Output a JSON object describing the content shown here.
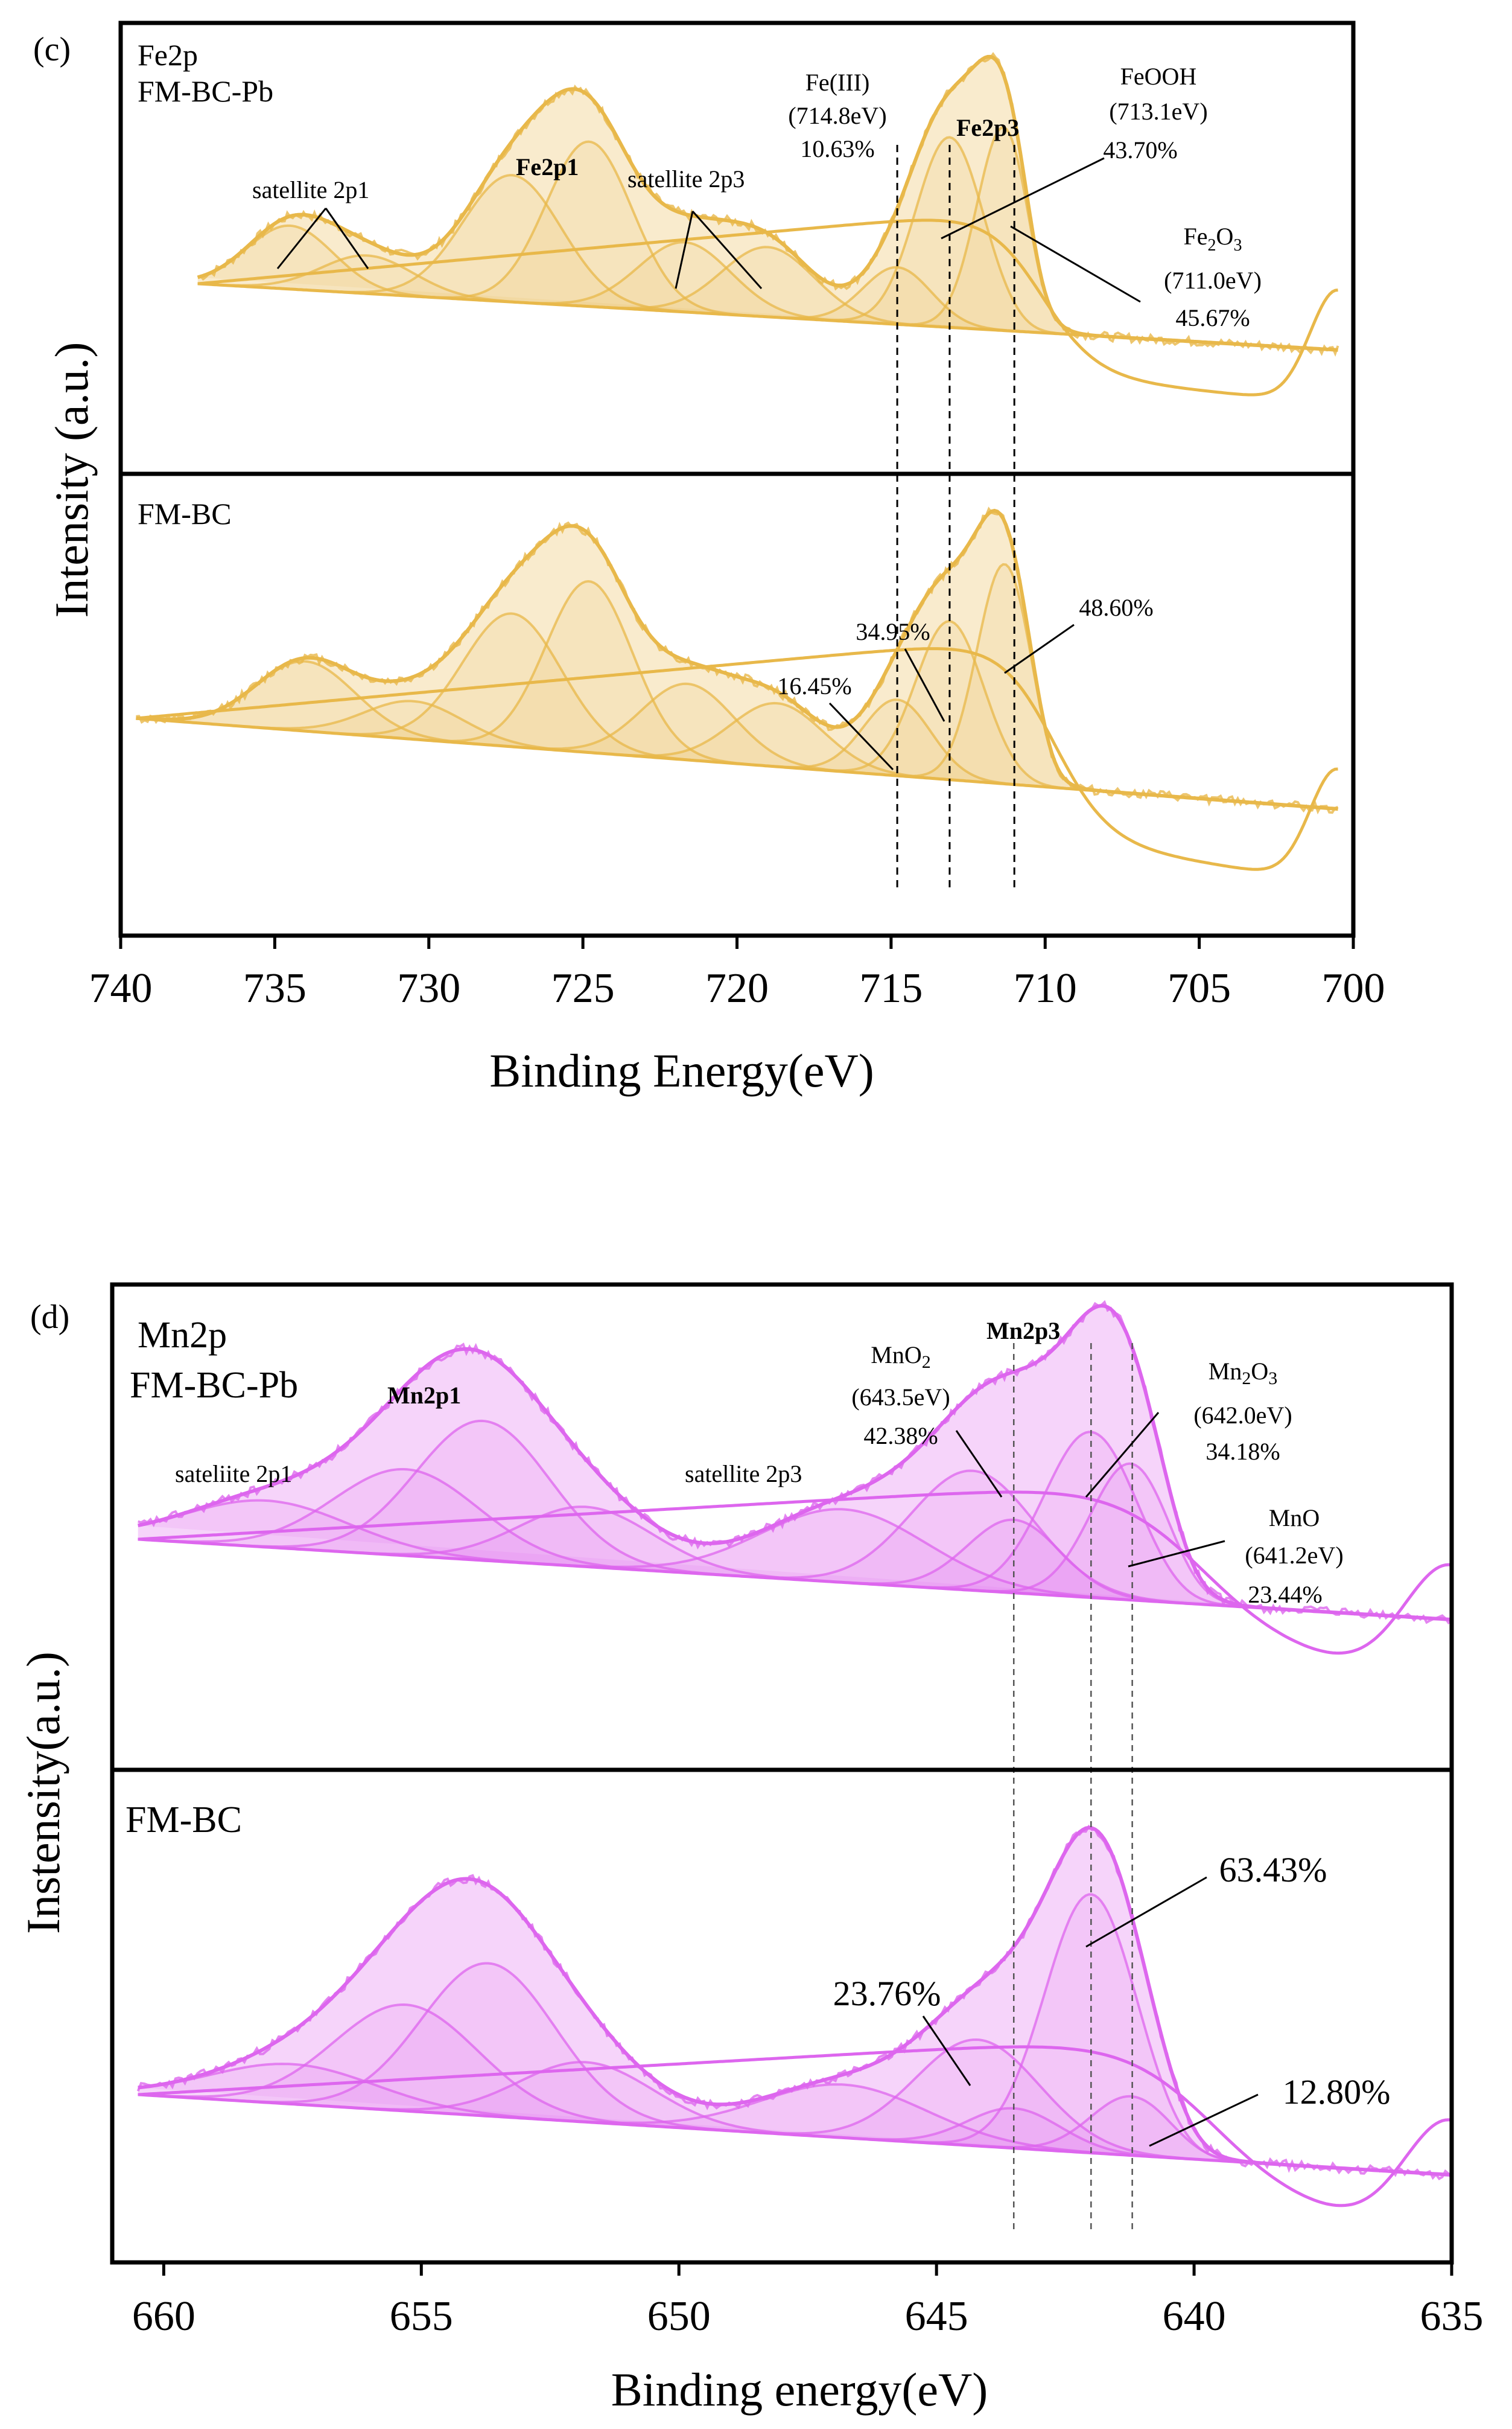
{
  "chart_data": [
    {
      "type": "line",
      "panel_label": "(c)",
      "element": "Fe2p",
      "xlabel": "Binding Energy(eV)",
      "ylabel": "Intensity (a.u.)",
      "xlim": [
        740,
        700
      ],
      "xticks": [
        740,
        735,
        730,
        725,
        720,
        715,
        710,
        705,
        700
      ],
      "color": "#E8B84A",
      "reference_lines": [
        714.8,
        713.1,
        711.0
      ],
      "subpanels": [
        {
          "sample": "FM-BC-Pb",
          "element_label": "Fe2p",
          "peak_labels": [
            {
              "id": "sat1",
              "text": "satellite 2p1",
              "x": [
                735,
                732
              ]
            },
            {
              "id": "fe2p1",
              "text": "Fe2p1",
              "x": 726
            },
            {
              "id": "sat3",
              "text": "satellite 2p3",
              "x": [
                721.5,
                719
              ]
            },
            {
              "id": "fe2p3",
              "text": "Fe2p3",
              "x": 712.3
            }
          ],
          "components": [
            {
              "name": "Fe(III)",
              "energy_label": "(714.8eV)",
              "percent_label": "10.63%",
              "energy": 714.8,
              "percent": 10.63
            },
            {
              "name": "FeOOH",
              "energy_label": "(713.1eV)",
              "percent_label": "43.70%",
              "energy": 713.1,
              "percent": 43.7
            },
            {
              "name": "Fe2O3",
              "name_base": "Fe",
              "sub1": "2",
              "name_mid": "O",
              "sub2": "3",
              "energy_label": "(711.0eV)",
              "percent_label": "45.67%",
              "energy": 711.0,
              "percent": 45.67
            }
          ],
          "peaks": [
            [
              734.5,
              1.4,
              0.5
            ],
            [
              732,
              1.5,
              0.3
            ],
            [
              727.3,
              1.6,
              1.0
            ],
            [
              724.8,
              1.4,
              1.3
            ],
            [
              721.7,
              1.5,
              0.55
            ],
            [
              719.0,
              1.5,
              0.55
            ],
            [
              714.8,
              1.1,
              0.45
            ],
            [
              713.1,
              1.1,
              1.5
            ],
            [
              711.3,
              0.9,
              1.65
            ]
          ],
          "edge_energy": 710.2,
          "background": {
            "high_x": 737.5,
            "high_y": 0.0,
            "low_x": 700.5,
            "low_y": -0.95
          }
        },
        {
          "sample": "FM-BC",
          "components": [
            {
              "energy": 714.8,
              "percent_label": "16.45%",
              "percent": 16.45
            },
            {
              "energy": 713.1,
              "percent_label": "34.95%",
              "percent": 34.95
            },
            {
              "energy": 711.0,
              "percent_label": "48.60%",
              "percent": 48.6
            }
          ],
          "peaks": [
            [
              734.0,
              1.6,
              0.55
            ],
            [
              730.5,
              1.6,
              0.3
            ],
            [
              727.3,
              1.6,
              1.05
            ],
            [
              724.8,
              1.4,
              1.35
            ],
            [
              721.6,
              1.5,
              0.6
            ],
            [
              718.7,
              1.5,
              0.5
            ],
            [
              714.8,
              1.1,
              0.6
            ],
            [
              713.1,
              1.1,
              1.25
            ],
            [
              711.3,
              0.9,
              1.75
            ]
          ],
          "edge_energy": 709.8,
          "background": {
            "high_x": 739.5,
            "high_y": 0.0,
            "low_x": 700.5,
            "low_y": -1.3
          }
        }
      ]
    },
    {
      "type": "line",
      "panel_label": "(d)",
      "element": "Mn2p",
      "xlabel": "Binding energy(eV)",
      "ylabel": "Instensity(a.u.)",
      "xlim": [
        661,
        635
      ],
      "xticks": [
        660,
        655,
        650,
        645,
        640,
        635
      ],
      "color": "#DD66EE",
      "reference_lines": [
        643.5,
        642.0,
        641.2
      ],
      "subpanels": [
        {
          "sample": "FM-BC-Pb",
          "element_label": "Mn2p",
          "peak_labels": [
            {
              "id": "sat1",
              "text": "sateliite 2p1",
              "x": 657
            },
            {
              "id": "mn2p1",
              "text": "Mn2p1",
              "x": 653.8
            },
            {
              "id": "sat3",
              "text": "satellite 2p3",
              "x": 646.8
            },
            {
              "id": "mn2p3",
              "text": "Mn2p3",
              "x": 642.0
            }
          ],
          "components": [
            {
              "name": "MnO2",
              "name_base": "MnO",
              "sub1": "2",
              "energy_label": "(643.5eV)",
              "percent_label": "42.38%",
              "energy": 643.5,
              "percent": 42.38
            },
            {
              "name": "Mn2O3",
              "name_base": "Mn",
              "sub1": "2",
              "name_mid": "O",
              "sub2": "3",
              "energy_label": "(642.0eV)",
              "percent_label": "34.18%",
              "energy": 642.0,
              "percent": 34.18
            },
            {
              "name": "MnO",
              "energy_label": "(641.2eV)",
              "percent_label": "23.44%",
              "energy": 641.2,
              "percent": 23.44
            }
          ],
          "peaks": [
            [
              658.0,
              1.6,
              0.35
            ],
            [
              655.3,
              1.4,
              0.65
            ],
            [
              653.8,
              1.3,
              1.05
            ],
            [
              651.8,
              1.3,
              0.45
            ],
            [
              646.8,
              1.6,
              0.55
            ],
            [
              644.3,
              1.2,
              0.9
            ],
            [
              643.5,
              0.9,
              0.55
            ],
            [
              642.0,
              0.9,
              1.25
            ],
            [
              641.2,
              0.8,
              1.05
            ]
          ],
          "edge_energy": 640.0,
          "background": {
            "high_x": 660.5,
            "high_y": 0.0,
            "low_x": 635,
            "low_y": -1.1
          }
        },
        {
          "sample": "FM-BC",
          "components": [
            {
              "energy": 643.5,
              "percent_label": "23.76%",
              "percent": 23.76
            },
            {
              "energy": 642.0,
              "percent_label": "63.43%",
              "percent": 63.43
            },
            {
              "energy": 641.2,
              "percent_label": "12.80%",
              "percent": 12.8
            }
          ],
          "peaks": [
            [
              657.5,
              1.6,
              0.3
            ],
            [
              655.3,
              1.4,
              0.8
            ],
            [
              653.7,
              1.3,
              1.15
            ],
            [
              651.8,
              1.3,
              0.45
            ],
            [
              646.8,
              1.6,
              0.4
            ],
            [
              644.2,
              1.2,
              0.8
            ],
            [
              643.5,
              0.9,
              0.3
            ],
            [
              642.0,
              0.9,
              1.95
            ],
            [
              641.2,
              0.8,
              0.45
            ]
          ],
          "edge_energy": 639.8,
          "background": {
            "high_x": 660.5,
            "high_y": 0.0,
            "low_x": 635,
            "low_y": -1.1
          }
        }
      ]
    }
  ]
}
